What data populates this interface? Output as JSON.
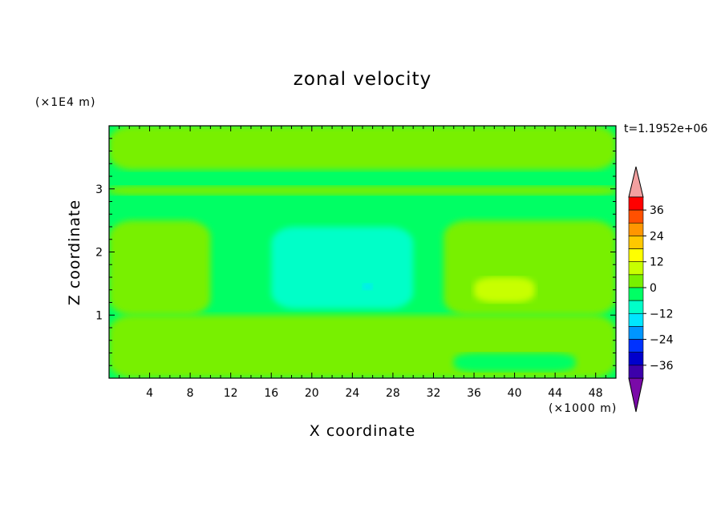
{
  "chart_data": {
    "type": "heatmap",
    "title": "zonal velocity",
    "xlabel": "X coordinate",
    "ylabel": "Z coordinate",
    "x_unit": "(×1000 m)",
    "y_unit": "(×1E4 m)",
    "time_label": "t=1.1952e+06",
    "xlim": [
      0,
      50
    ],
    "ylim": [
      0,
      4
    ],
    "x_ticks": [
      4,
      8,
      12,
      16,
      20,
      24,
      28,
      32,
      36,
      40,
      44,
      48
    ],
    "y_ticks": [
      1,
      2,
      3
    ],
    "colorbar": {
      "tick_labels": [
        "36",
        "24",
        "12",
        "0",
        "−12",
        "−24",
        "−36"
      ],
      "tick_values": [
        36,
        24,
        12,
        0,
        -12,
        -24,
        -36
      ],
      "levels": [
        -42,
        -36,
        -30,
        -24,
        -18,
        -12,
        -6,
        0,
        6,
        12,
        18,
        24,
        30,
        36,
        42
      ],
      "colors": [
        "#7a0aa8",
        "#3c00aa",
        "#0000cc",
        "#0032ff",
        "#0096ff",
        "#00e6ff",
        "#00ffc8",
        "#00ff64",
        "#78f000",
        "#c8ff00",
        "#ffff00",
        "#ffc800",
        "#ff9600",
        "#ff5000",
        "#ff0000",
        "#f2a0a0"
      ]
    },
    "field": {
      "base_value": -2,
      "regions": [
        {
          "name": "upper-layer",
          "x": [
            0,
            50
          ],
          "z": [
            3.3,
            4
          ],
          "value": 2
        },
        {
          "name": "band-3km",
          "x": [
            0,
            50
          ],
          "z": [
            2.9,
            3.05
          ],
          "value": 1
        },
        {
          "name": "left-positive",
          "x": [
            0,
            10
          ],
          "z": [
            1.0,
            2.5
          ],
          "value": 1
        },
        {
          "name": "negative-core",
          "x": [
            16,
            30
          ],
          "z": [
            1.1,
            2.4
          ],
          "value": -7
        },
        {
          "name": "negative-minimum",
          "x": [
            25,
            26
          ],
          "z": [
            1.4,
            1.5
          ],
          "value": -17
        },
        {
          "name": "right-positive",
          "x": [
            33,
            50
          ],
          "z": [
            1.0,
            2.5
          ],
          "value": 4
        },
        {
          "name": "positive-core",
          "x": [
            36,
            42
          ],
          "z": [
            1.2,
            1.6
          ],
          "value": 10
        },
        {
          "name": "lower-mixed",
          "x": [
            0,
            50
          ],
          "z": [
            0,
            1.0
          ],
          "value": 0
        },
        {
          "name": "lower-negative",
          "x": [
            34,
            46
          ],
          "z": [
            0.1,
            0.4
          ],
          "value": -6
        }
      ]
    }
  }
}
